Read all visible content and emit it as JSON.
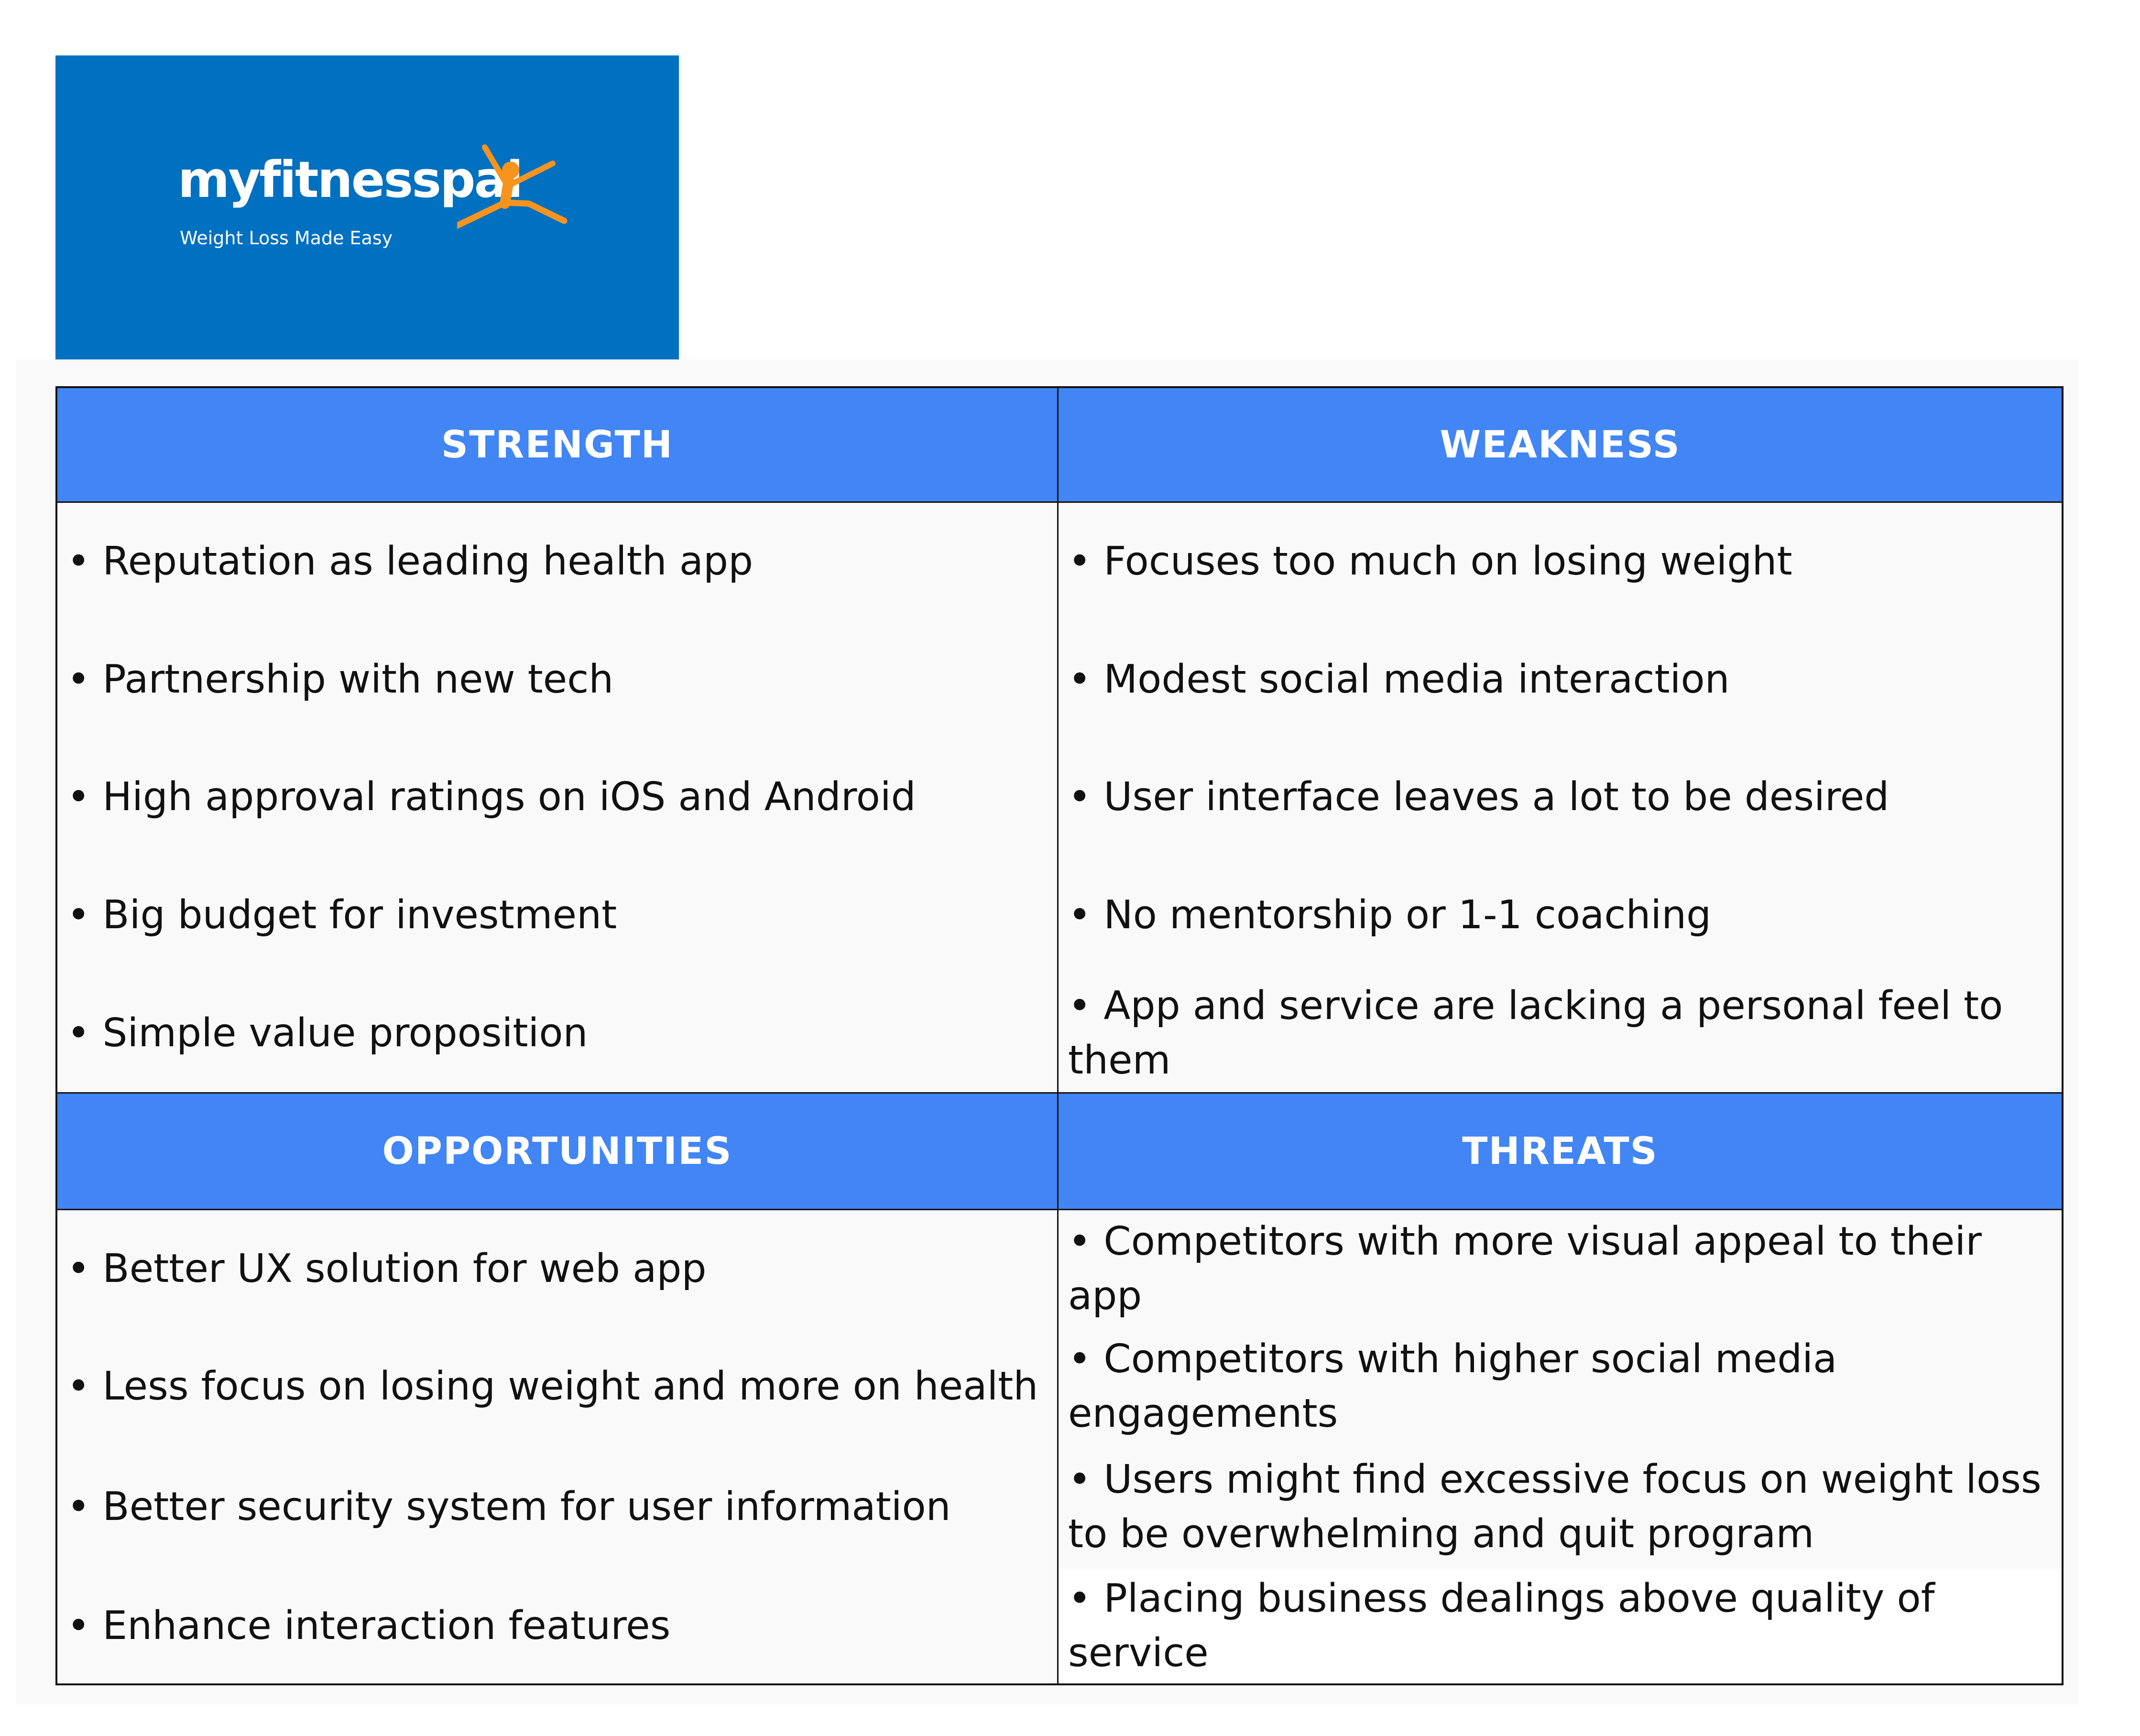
{
  "logo": {
    "brand": "myfitnesspal",
    "tagline": "Weight Loss Made Easy"
  },
  "colors": {
    "logo_background": "#0070c0",
    "header_background": "#4285f4",
    "logo_figure": "#f7941d",
    "cell_background": "#f9f9f9",
    "border": "#111111"
  },
  "swot": {
    "strength": {
      "title": "STRENGTH",
      "items": [
        "• Reputation as leading health app",
        "• Partnership with new tech",
        "• High approval ratings on iOS and Android",
        "• Big budget for investment",
        "• Simple value proposition"
      ]
    },
    "weakness": {
      "title": "WEAKNESS",
      "items": [
        "• Focuses too much on losing weight",
        "• Modest social media interaction",
        "• User interface leaves a lot to be desired",
        "• No mentorship or 1-1 coaching",
        "• App and service are lacking a personal feel to them"
      ]
    },
    "opportunities": {
      "title": "OPPORTUNITIES",
      "items": [
        "• Better UX solution for web app",
        "• Less focus on losing weight and more on health",
        "• Better security system for user information",
        "• Enhance interaction features"
      ]
    },
    "threats": {
      "title": "THREATS",
      "items": [
        "• Competitors with more visual appeal to their app",
        "• Competitors with higher social media engagements",
        "• Users might find excessive focus on weight loss to be overwhelming and quit program",
        "• Placing business dealings above quality of service"
      ]
    }
  }
}
